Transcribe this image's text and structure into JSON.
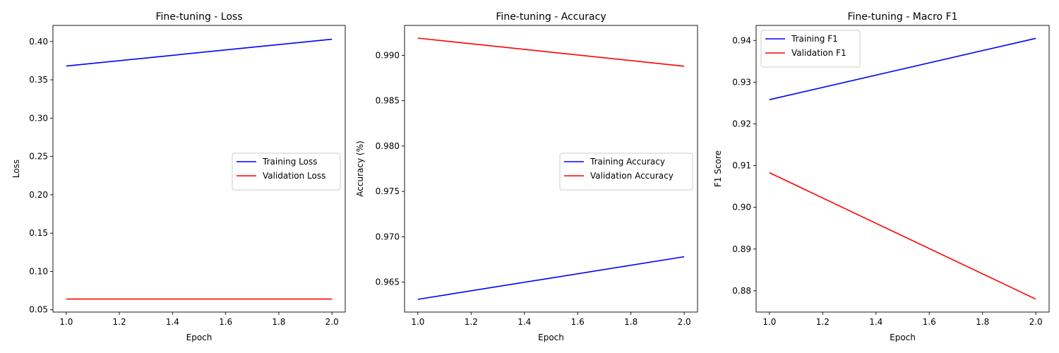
{
  "chart_data": [
    {
      "type": "line",
      "title": "Fine-tuning - Loss",
      "xlabel": "Epoch",
      "ylabel": "Loss",
      "xlim": [
        0.95,
        2.05
      ],
      "ylim": [
        0.047,
        0.421
      ],
      "xticks": [
        1.0,
        1.2,
        1.4,
        1.6,
        1.8,
        2.0
      ],
      "xtick_labels": [
        "1.0",
        "1.2",
        "1.4",
        "1.6",
        "1.8",
        "2.0"
      ],
      "yticks": [
        0.05,
        0.1,
        0.15,
        0.2,
        0.25,
        0.3,
        0.35,
        0.4
      ],
      "ytick_labels": [
        "0.05",
        "0.10",
        "0.15",
        "0.20",
        "0.25",
        "0.30",
        "0.35",
        "0.40"
      ],
      "grid": false,
      "legend": "center-right",
      "x": [
        1,
        2
      ],
      "series": [
        {
          "name": "Training Loss",
          "color": "#0000ff",
          "values": [
            0.368,
            0.403
          ]
        },
        {
          "name": "Validation Loss",
          "color": "#ff0000",
          "values": [
            0.064,
            0.064
          ]
        }
      ]
    },
    {
      "type": "line",
      "title": "Fine-tuning - Accuracy",
      "xlabel": "Epoch",
      "ylabel": "Accuracy (%)",
      "xlim": [
        0.95,
        2.05
      ],
      "ylim": [
        0.9617,
        0.9933
      ],
      "xticks": [
        1.0,
        1.2,
        1.4,
        1.6,
        1.8,
        2.0
      ],
      "xtick_labels": [
        "1.0",
        "1.2",
        "1.4",
        "1.6",
        "1.8",
        "2.0"
      ],
      "yticks": [
        0.965,
        0.97,
        0.975,
        0.98,
        0.985,
        0.99
      ],
      "ytick_labels": [
        "0.965",
        "0.970",
        "0.975",
        "0.980",
        "0.985",
        "0.990"
      ],
      "grid": false,
      "legend": "center-right",
      "x": [
        1,
        2
      ],
      "series": [
        {
          "name": "Training Accuracy",
          "color": "#0000ff",
          "values": [
            0.9631,
            0.9678
          ]
        },
        {
          "name": "Validation Accuracy",
          "color": "#ff0000",
          "values": [
            0.9919,
            0.9888
          ]
        }
      ]
    },
    {
      "type": "line",
      "title": "Fine-tuning - Macro F1",
      "xlabel": "Epoch",
      "ylabel": "F1 Score",
      "xlim": [
        0.95,
        2.05
      ],
      "ylim": [
        0.8749,
        0.9436
      ],
      "xticks": [
        1.0,
        1.2,
        1.4,
        1.6,
        1.8,
        2.0
      ],
      "xtick_labels": [
        "1.0",
        "1.2",
        "1.4",
        "1.6",
        "1.8",
        "2.0"
      ],
      "yticks": [
        0.88,
        0.89,
        0.9,
        0.91,
        0.92,
        0.93,
        0.94
      ],
      "ytick_labels": [
        "0.88",
        "0.89",
        "0.90",
        "0.91",
        "0.92",
        "0.93",
        "0.94"
      ],
      "grid": false,
      "legend": "top-left",
      "x": [
        1,
        2
      ],
      "series": [
        {
          "name": "Training F1",
          "color": "#0000ff",
          "values": [
            0.9258,
            0.9405
          ]
        },
        {
          "name": "Validation F1",
          "color": "#ff0000",
          "values": [
            0.9083,
            0.878
          ]
        }
      ]
    }
  ]
}
